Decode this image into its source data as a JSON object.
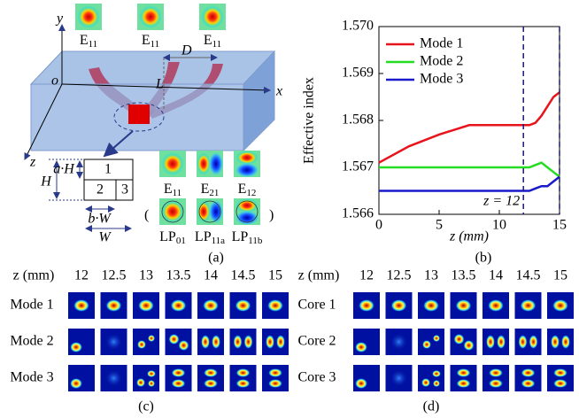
{
  "panel_a": {
    "label": "(a)",
    "axes": {
      "x": "x",
      "y": "y",
      "z": "z",
      "origin": "o"
    },
    "dims": {
      "D": "D",
      "L": "L"
    },
    "top_modes": [
      {
        "main": "E",
        "sub": "11"
      },
      {
        "main": "E",
        "sub": "11"
      },
      {
        "main": "E",
        "sub": "11"
      }
    ],
    "cross_section": {
      "cores": [
        "1",
        "2",
        "3"
      ],
      "H": "H",
      "aH": "a·H",
      "bW": "b·W",
      "W": "W"
    },
    "modes": [
      {
        "main": "E",
        "sub": "11"
      },
      {
        "main": "E",
        "sub": "21"
      },
      {
        "main": "E",
        "sub": "12"
      }
    ],
    "lp_modes": [
      {
        "main": "LP",
        "sub": "01"
      },
      {
        "main": "LP",
        "sub": "11a"
      },
      {
        "main": "LP",
        "sub": "11b"
      }
    ]
  },
  "chart_data": {
    "type": "line",
    "label": "(b)",
    "xlabel": "z (mm)",
    "ylabel": "Effective index",
    "x": [
      0,
      2.5,
      5,
      7.5,
      10,
      12,
      12.5,
      13,
      13.5,
      14,
      14.5,
      15
    ],
    "series": [
      {
        "name": "Mode 1",
        "color": "#e8141c",
        "values": [
          1.5671,
          1.56745,
          1.5677,
          1.5679,
          1.5679,
          1.5679,
          1.5679,
          1.56795,
          1.5681,
          1.5683,
          1.5685,
          1.5686
        ]
      },
      {
        "name": "Mode 2",
        "color": "#22dd22",
        "values": [
          1.567,
          1.567,
          1.567,
          1.567,
          1.567,
          1.567,
          1.567,
          1.56705,
          1.5671,
          1.567,
          1.5669,
          1.5668
        ]
      },
      {
        "name": "Mode 3",
        "color": "#1a1acc",
        "values": [
          1.5665,
          1.5665,
          1.5665,
          1.5665,
          1.5665,
          1.5665,
          1.5665,
          1.56655,
          1.5666,
          1.5666,
          1.5667,
          1.5668
        ]
      }
    ],
    "xlim": [
      0,
      15
    ],
    "xticks": [
      0,
      5,
      10,
      15
    ],
    "ylim": [
      1.566,
      1.57
    ],
    "yticks": [
      1.566,
      1.567,
      1.568,
      1.569,
      {
        "value": 1.57,
        "label": "1.570"
      }
    ],
    "vlines": [
      12,
      15
    ],
    "annotation": "z = 12",
    "legend": "upper left"
  },
  "panel_c": {
    "label": "(c)",
    "header": "z (mm)",
    "z_values": [
      12,
      12.5,
      13,
      13.5,
      14,
      14.5,
      15
    ],
    "rows": [
      "Mode 1",
      "Mode 2",
      "Mode 3"
    ]
  },
  "panel_d": {
    "label": "(d)",
    "header": "z (mm)",
    "z_values": [
      12,
      12.5,
      13,
      13.5,
      14,
      14.5,
      15
    ],
    "rows": [
      "Core 1",
      "Core 2",
      "Core 3"
    ]
  }
}
